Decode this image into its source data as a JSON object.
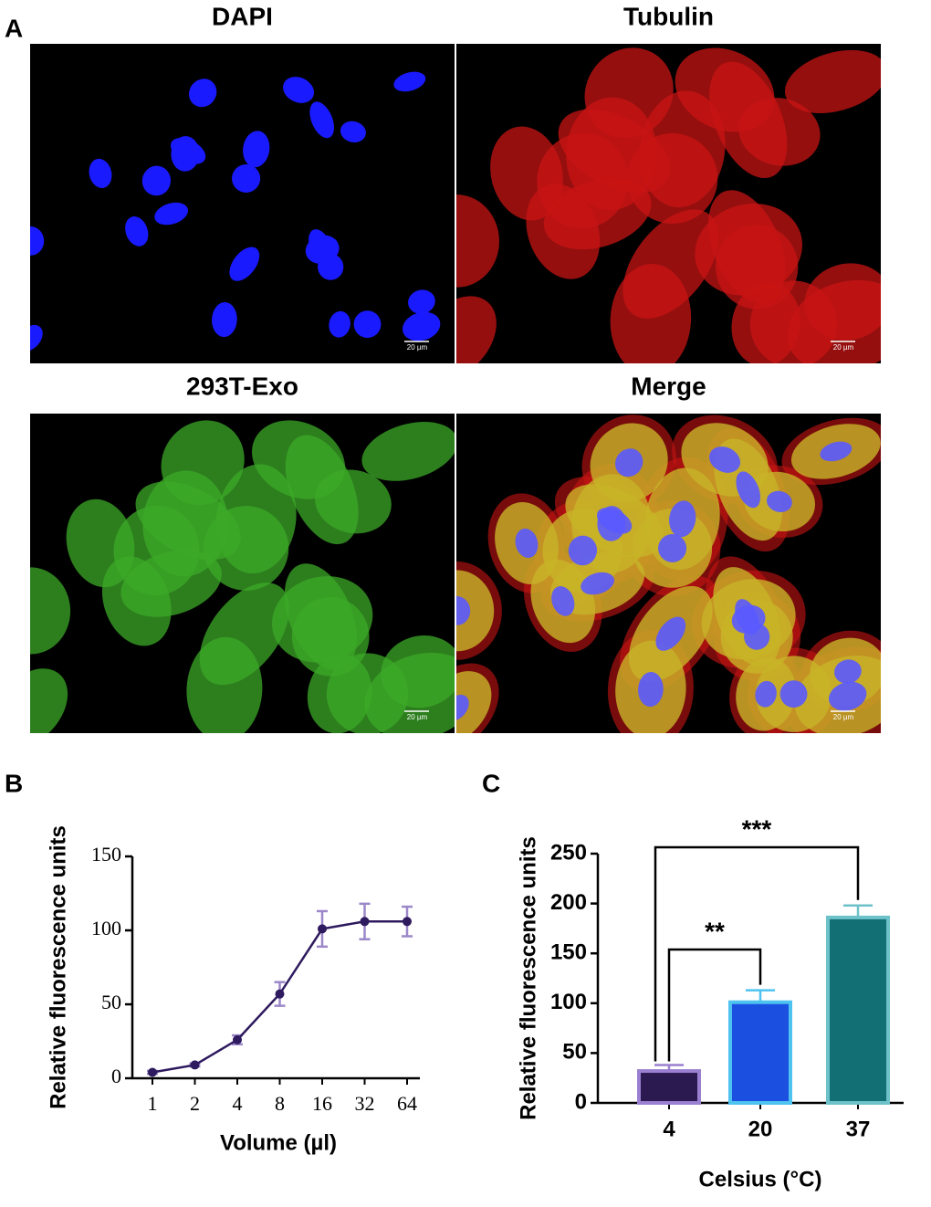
{
  "figure": {
    "panel_labels": [
      "A",
      "B",
      "C"
    ],
    "images": [
      {
        "title": "DAPI",
        "scale_bar": "20 µm"
      },
      {
        "title": "Tubulin",
        "scale_bar": "20 µm"
      },
      {
        "title": "293T-Exo",
        "scale_bar": "20 µm"
      },
      {
        "title": "Merge",
        "scale_bar": "20 µm"
      }
    ]
  },
  "chart_data": [
    {
      "type": "line",
      "categories": [
        "1",
        "2",
        "4",
        "8",
        "16",
        "32",
        "64"
      ],
      "values": [
        4,
        9,
        26,
        57,
        101,
        106,
        106
      ],
      "errors": [
        1,
        1,
        3,
        8,
        12,
        12,
        10
      ],
      "color": "#2e1a5e",
      "error_color": "#9b87c9",
      "xlabel": "Volume (µl)",
      "ylabel": "Relative fluorescence units",
      "ylim": [
        0,
        150
      ],
      "yticks": [
        0,
        50,
        100,
        150
      ]
    },
    {
      "type": "bar",
      "categories": [
        "4",
        "20",
        "37"
      ],
      "values": [
        32,
        101,
        186
      ],
      "errors": [
        6,
        12,
        12
      ],
      "colors": [
        "#2b1a4f",
        "#1a4fe0",
        "#127075"
      ],
      "edge_colors": [
        "#9b7fd0",
        "#4ec3f0",
        "#6cc2c8"
      ],
      "xlabel": "Celsius (°C)",
      "ylabel": "Relative fluorescence units",
      "ylim": [
        0,
        250
      ],
      "yticks": [
        0,
        50,
        100,
        150,
        200,
        250
      ],
      "annotations": [
        "**",
        "***"
      ]
    }
  ]
}
